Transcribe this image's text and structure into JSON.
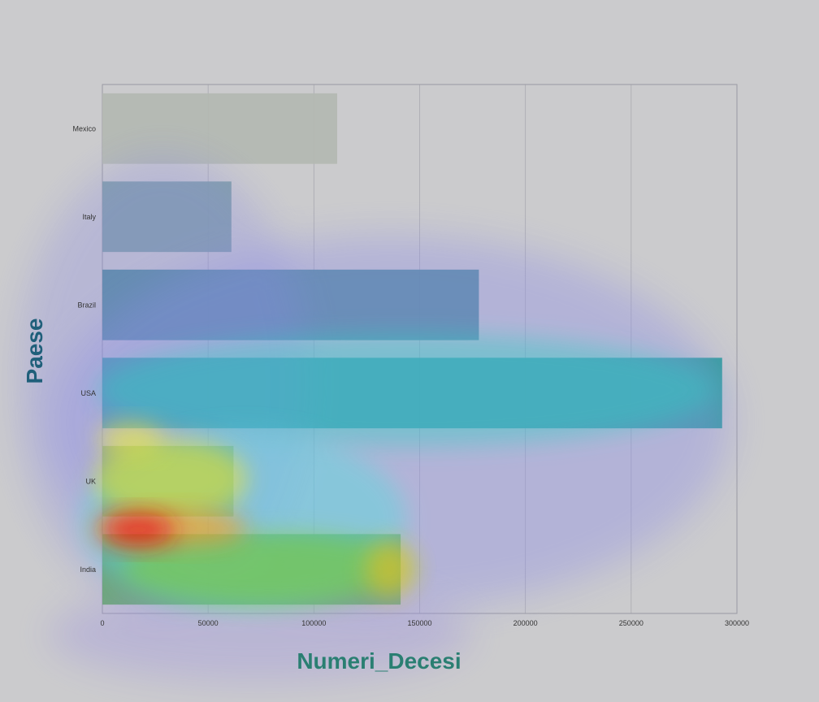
{
  "chart_data": {
    "type": "bar",
    "orientation": "horizontal",
    "categories": [
      "Mexico",
      "Italy",
      "Brazil",
      "USA",
      "UK",
      "India"
    ],
    "values": [
      111000,
      61000,
      178000,
      293000,
      62000,
      141000
    ],
    "xlabel": "Numeri_Decesi",
    "ylabel": "Paese",
    "xlim": [
      0,
      300000
    ],
    "xticks": [
      "0",
      "50000",
      "100000",
      "150000",
      "200000",
      "250000",
      "300000"
    ],
    "grid": true,
    "legend": "none",
    "overlay": "attention heatmap"
  },
  "colors": {
    "background": "#cbcbcd",
    "plot_frame": "#9a9aa2",
    "grid": "#a9a9b1",
    "xlabel": "#2a7f72",
    "ylabel": "#1f5f7a",
    "bar_fills": [
      "#b3b8b2",
      "#7f9ea4",
      "#4f8a98",
      "#2f9c9a",
      "#7fae5a",
      "#62ab5e"
    ]
  }
}
